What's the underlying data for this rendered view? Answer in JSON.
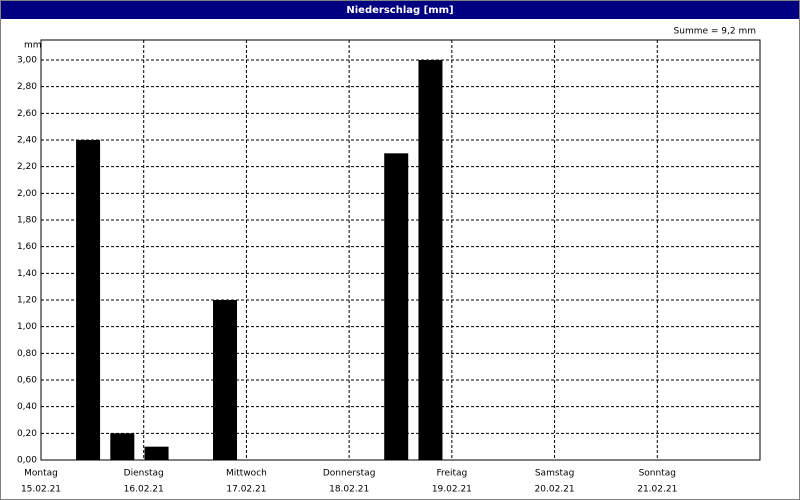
{
  "window_title": "Niederschlag [mm]",
  "chart_data": {
    "type": "bar",
    "annotation": "Summe = 9,2 mm",
    "y_unit": "mm",
    "x": [
      11,
      19,
      27,
      43,
      83,
      91
    ],
    "values": [
      2.4,
      0.2,
      0.1,
      1.2,
      2.3,
      3.0
    ],
    "color": "#000000",
    "xlim": [
      0,
      168
    ],
    "xticks": [
      {
        "value": 0,
        "label": "Montag"
      },
      {
        "value": 24,
        "label": "Dienstag"
      },
      {
        "value": 48,
        "label": "Mittwoch"
      },
      {
        "value": 72,
        "label": "Donnerstag"
      },
      {
        "value": 96,
        "label": "Freitag"
      },
      {
        "value": 120,
        "label": "Samstag"
      },
      {
        "value": 144,
        "label": "Sonntag"
      }
    ],
    "xtick_dates": [
      "15.02.21",
      "16.02.21",
      "17.02.21",
      "18.02.21",
      "19.02.21",
      "20.02.21",
      "21.02.21"
    ],
    "ylim": [
      0,
      3.15
    ],
    "yticks": [
      {
        "value": 0,
        "label": "0,00"
      },
      {
        "value": 0.2,
        "label": "0,20"
      },
      {
        "value": 0.4,
        "label": "0,40"
      },
      {
        "value": 0.6,
        "label": "0,60"
      },
      {
        "value": 0.8,
        "label": "0,80"
      },
      {
        "value": 1.0,
        "label": "1,00"
      },
      {
        "value": 1.2,
        "label": "1,20"
      },
      {
        "value": 1.4,
        "label": "1,40"
      },
      {
        "value": 1.6,
        "label": "1,60"
      },
      {
        "value": 1.8,
        "label": "1,80"
      },
      {
        "value": 2.0,
        "label": "2,00"
      },
      {
        "value": 2.2,
        "label": "2,20"
      },
      {
        "value": 2.4,
        "label": "2,40"
      },
      {
        "value": 2.6,
        "label": "2,60"
      },
      {
        "value": 2.8,
        "label": "2,80"
      },
      {
        "value": 3.0,
        "label": "3,00"
      }
    ],
    "grid": true
  }
}
